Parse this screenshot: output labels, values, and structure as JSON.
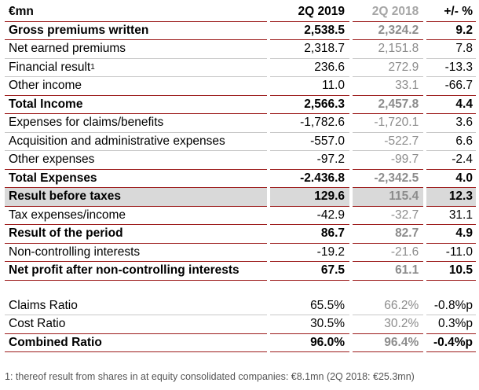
{
  "header": {
    "label": "€mn",
    "col1": "2Q 2019",
    "col2": "2Q 2018",
    "col3": "+/- %"
  },
  "rows": [
    {
      "label": "Gross premiums written",
      "v1": "2,538.5",
      "v2": "2,324.2",
      "v3": "9.2"
    },
    {
      "label": "Net earned premiums",
      "v1": "2,318.7",
      "v2": "2,151.8",
      "v3": "7.8"
    },
    {
      "label": "Financial result",
      "sup": "1",
      "v1": "236.6",
      "v2": "272.9",
      "v3": "-13.3"
    },
    {
      "label": "Other income",
      "v1": "11.0",
      "v2": "33.1",
      "v3": "-66.7"
    },
    {
      "label": "Total Income",
      "v1": "2,566.3",
      "v2": "2,457.8",
      "v3": "4.4"
    },
    {
      "label": "Expenses for claims/benefits",
      "v1": "-1,782.6",
      "v2": "-1,720.1",
      "v3": "3.6"
    },
    {
      "label": "Acquisition and administrative expenses",
      "v1": "-557.0",
      "v2": "-522.7",
      "v3": "6.6"
    },
    {
      "label": "Other expenses",
      "v1": "-97.2",
      "v2": "-99.7",
      "v3": "-2.4"
    },
    {
      "label": "Total Expenses",
      "v1": "-2.436.8",
      "v2": "-2,342.5",
      "v3": "4.0"
    },
    {
      "label": "Result before taxes",
      "v1": "129.6",
      "v2": "115.4",
      "v3": "12.3"
    },
    {
      "label": "Tax expenses/income",
      "v1": "-42.9",
      "v2": "-32.7",
      "v3": "31.1"
    },
    {
      "label": "Result of the period",
      "v1": "86.7",
      "v2": "82.7",
      "v3": "4.9"
    },
    {
      "label": "Non-controlling interests",
      "v1": "-19.2",
      "v2": "-21.6",
      "v3": "-11.0"
    },
    {
      "label": "Net profit after non-controlling interests",
      "v1": "67.5",
      "v2": "61.1",
      "v3": "10.5"
    }
  ],
  "ratios": [
    {
      "label": "Claims Ratio",
      "v1": "65.5%",
      "v2": "66.2%",
      "v3": "-0.8%p"
    },
    {
      "label": "Cost Ratio",
      "v1": "30.5%",
      "v2": "30.2%",
      "v3": "0.3%p"
    },
    {
      "label": "Combined Ratio",
      "v1": "96.0%",
      "v2": "96.4%",
      "v3": "-0.4%p"
    }
  ],
  "footnote": "1: thereof result from shares in at equity consolidated companies: €8.1mn (2Q 2018: €25.3mn)"
}
